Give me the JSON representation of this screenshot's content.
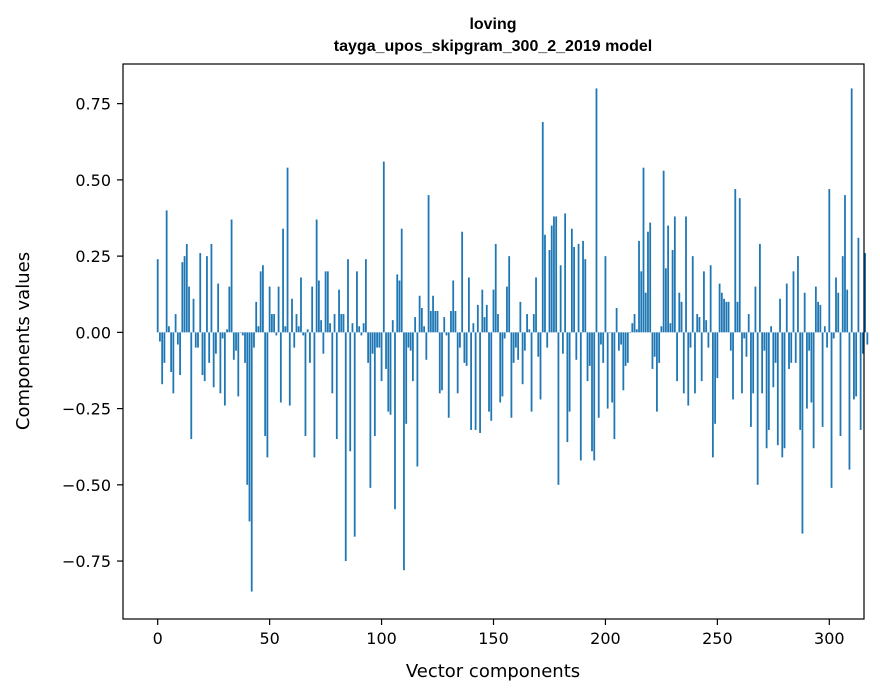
{
  "chart_data": {
    "type": "bar",
    "title": "loving",
    "subtitle": "tayga_upos_skipgram_300_2_2019 model",
    "xlabel": "Vector components",
    "ylabel": "Components values",
    "xlim": [
      -15.5,
      315.5
    ],
    "ylim": [
      -0.94,
      0.88
    ],
    "xticks": [
      0,
      50,
      100,
      150,
      200,
      250,
      300
    ],
    "xtick_labels": [
      "0",
      "50",
      "100",
      "150",
      "200",
      "250",
      "300"
    ],
    "yticks": [
      -0.75,
      -0.5,
      -0.25,
      0,
      0.25,
      0.5,
      0.75
    ],
    "ytick_labels": [
      "−0.75",
      "−0.50",
      "−0.25",
      "0.00",
      "0.25",
      "0.50",
      "0.75"
    ],
    "grid": false,
    "legend": "none",
    "color": "#1f77b4",
    "values": [
      0.24,
      -0.03,
      -0.17,
      -0.1,
      0.4,
      0.02,
      -0.13,
      -0.2,
      0.06,
      -0.04,
      -0.14,
      0.23,
      0.25,
      0.29,
      0.15,
      -0.35,
      0.11,
      -0.05,
      -0.05,
      0.26,
      -0.14,
      -0.16,
      0.25,
      -0.1,
      0.29,
      -0.18,
      -0.07,
      0.16,
      -0.2,
      -0.02,
      -0.24,
      0.01,
      0.15,
      0.37,
      -0.09,
      -0.06,
      -0.21,
      0.0,
      -0.01,
      -0.1,
      -0.5,
      -0.62,
      -0.85,
      -0.05,
      0.1,
      0.02,
      0.2,
      0.22,
      -0.34,
      -0.41,
      0.15,
      0.06,
      0.06,
      -0.01,
      0.15,
      -0.23,
      0.34,
      0.02,
      0.54,
      -0.24,
      0.11,
      -0.05,
      0.06,
      0.02,
      0.18,
      -0.01,
      -0.34,
      0.01,
      -0.1,
      0.15,
      -0.41,
      0.37,
      0.17,
      0.04,
      -0.07,
      0.2,
      0.2,
      0.03,
      -0.2,
      0.06,
      -0.35,
      0.14,
      0.06,
      0.06,
      -0.75,
      0.24,
      -0.39,
      0.03,
      -0.67,
      0.2,
      0.02,
      -0.01,
      0.03,
      0.24,
      -0.1,
      -0.51,
      -0.07,
      -0.34,
      -0.05,
      -0.05,
      -0.16,
      0.56,
      -0.12,
      -0.26,
      -0.27,
      0.04,
      -0.58,
      0.19,
      0.17,
      0.34,
      -0.78,
      -0.3,
      -0.05,
      -0.06,
      -0.16,
      0.05,
      -0.44,
      0.12,
      0.08,
      0.02,
      -0.09,
      0.45,
      0.07,
      0.12,
      0.07,
      0.07,
      -0.2,
      -0.19,
      0.05,
      -0.01,
      -0.28,
      0.07,
      0.17,
      0.07,
      -0.2,
      -0.05,
      0.33,
      -0.1,
      -0.11,
      0.18,
      -0.32,
      0.03,
      -0.32,
      0.09,
      -0.33,
      0.14,
      0.05,
      0.09,
      -0.26,
      -0.29,
      0.14,
      0.29,
      0.06,
      -0.23,
      -0.21,
      -0.02,
      0.15,
      0.25,
      -0.28,
      -0.1,
      -0.05,
      -0.09,
      0.1,
      -0.17,
      -0.06,
      0.06,
      0.01,
      -0.26,
      0.06,
      0.18,
      -0.08,
      -0.22,
      0.69,
      0.32,
      -0.05,
      0.27,
      0.35,
      0.38,
      0.38,
      -0.5,
      0.22,
      -0.07,
      0.39,
      -0.36,
      -0.26,
      0.34,
      0.28,
      -0.09,
      0.29,
      -0.42,
      0.3,
      0.24,
      -0.16,
      -0.11,
      -0.39,
      -0.42,
      0.8,
      -0.28,
      -0.04,
      -0.1,
      0.25,
      -0.25,
      0.0,
      -0.23,
      -0.35,
      0.08,
      -0.06,
      -0.04,
      -0.19,
      -0.11,
      -0.1,
      0.0,
      0.03,
      0.06,
      0.01,
      0.3,
      0.2,
      0.54,
      0.13,
      0.33,
      0.36,
      -0.12,
      -0.08,
      -0.26,
      -0.1,
      0.02,
      0.53,
      0.21,
      0.35,
      0.03,
      0.27,
      0.38,
      -0.16,
      0.13,
      0.1,
      -0.2,
      0.38,
      -0.24,
      -0.05,
      0.25,
      -0.2,
      0.06,
      0.05,
      -0.16,
      0.2,
      0.04,
      -0.05,
      0.22,
      -0.41,
      -0.3,
      -0.15,
      0.16,
      0.13,
      0.11,
      0.1,
      0.1,
      -0.06,
      -0.22,
      0.47,
      0.1,
      0.44,
      -0.2,
      -0.02,
      -0.08,
      0.06,
      -0.31,
      -0.2,
      0.15,
      -0.5,
      0.29,
      -0.2,
      -0.06,
      -0.38,
      -0.32,
      0.02,
      -0.18,
      -0.1,
      -0.37,
      0.11,
      -0.41,
      -0.38,
      0.16,
      -0.12,
      -0.1,
      0.2,
      -0.1,
      0.25,
      -0.32,
      -0.66,
      0.13,
      -0.25,
      -0.06,
      -0.23,
      -0.38,
      0.15,
      0.1,
      0.09,
      -0.31,
      0.02,
      -0.05,
      0.47,
      -0.51,
      -0.02,
      0.18,
      0.13,
      -0.34,
      0.25,
      0.45,
      0.14,
      -0.45,
      0.8,
      -0.22,
      -0.21,
      0.31,
      -0.32,
      -0.07,
      0.26,
      -0.04
    ]
  }
}
